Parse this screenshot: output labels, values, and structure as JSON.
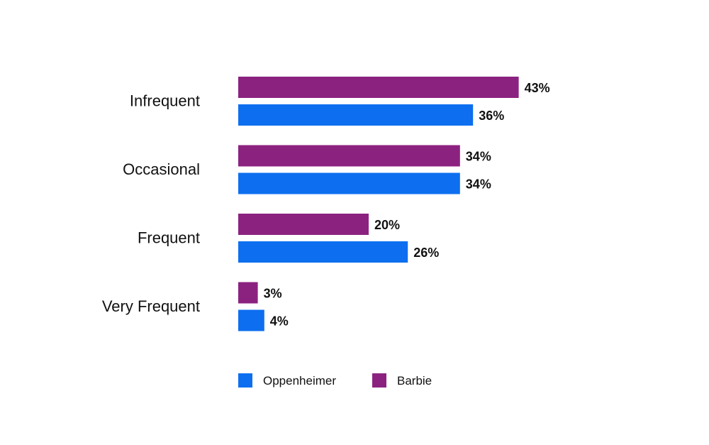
{
  "chart_data": {
    "type": "bar",
    "orientation": "horizontal",
    "categories": [
      "Infrequent",
      "Occasional",
      "Frequent",
      "Very Frequent"
    ],
    "series": [
      {
        "name": "Barbie",
        "color": "#8C2280",
        "values": [
          43,
          34,
          20,
          3
        ]
      },
      {
        "name": "Oppenheimer",
        "color": "#0D6FEF",
        "values": [
          36,
          34,
          26,
          4
        ]
      }
    ],
    "value_suffix": "%",
    "xlim": [
      0,
      100
    ],
    "grid": false,
    "legend": {
      "placement": "bottom",
      "order": [
        "Oppenheimer",
        "Barbie"
      ]
    }
  }
}
